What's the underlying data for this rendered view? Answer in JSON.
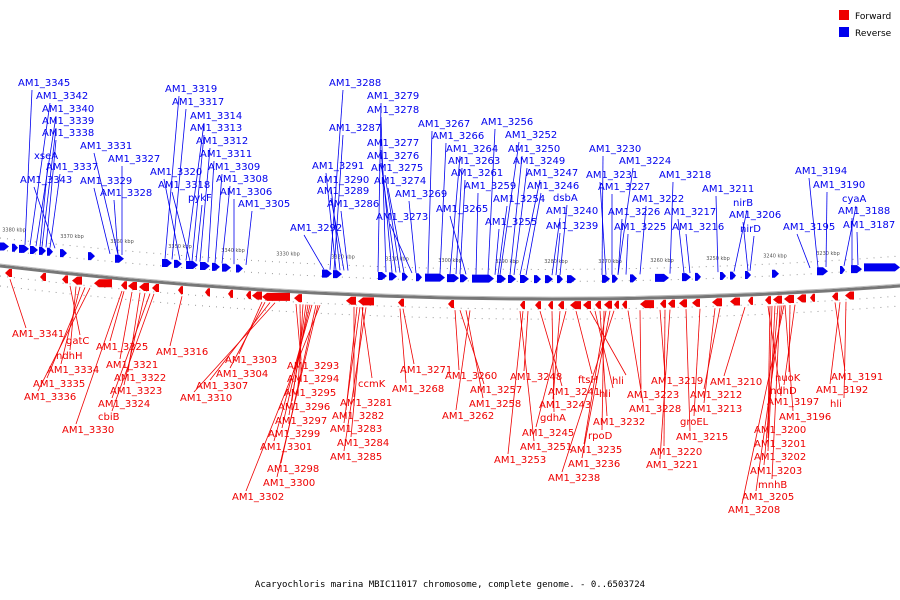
{
  "legend": {
    "forward_label": "Forward",
    "reverse_label": "Reverse",
    "forward_color": "#ee0000",
    "reverse_color": "#0000ee"
  },
  "caption": "Acaryochloris marina MBIC11017 chromosome, complete genome. - 0..6503724",
  "ticks": [
    "3380 kbp",
    "3370 kbp",
    "3360 kbp",
    "3350 kbp",
    "3340 kbp",
    "3330 kbp",
    "3320 kbp",
    "3310 kbp",
    "3300 kbp",
    "3290 kbp",
    "3280 kbp",
    "3270 kbp",
    "3260 kbp",
    "3250 kbp",
    "3240 kbp",
    "3230 kbp"
  ],
  "reverse_labels": [
    "AM1_3345",
    "AM1_3342",
    "AM1_3340",
    "AM1_3339",
    "AM1_3338",
    "xseA",
    "AM1_3337",
    "AM1_3343",
    "AM1_3331",
    "AM1_3327",
    "AM1_3329",
    "AM1_3328",
    "AM1_3319",
    "AM1_3317",
    "AM1_3314",
    "AM1_3313",
    "AM1_3312",
    "AM1_3311",
    "AM1_3320",
    "AM1_3309",
    "AM1_3318",
    "AM1_3308",
    "pykF",
    "AM1_3306",
    "AM1_3305",
    "AM1_3288",
    "AM1_3279",
    "AM1_3278",
    "AM1_3287",
    "AM1_3277",
    "AM1_3276",
    "AM1_3291",
    "AM1_3275",
    "AM1_3290",
    "AM1_3274",
    "AM1_3289",
    "AM1_3286",
    "AM1_3292",
    "AM1_3273",
    "AM1_3267",
    "AM1_3266",
    "AM1_3264",
    "AM1_3263",
    "AM1_3261",
    "AM1_3265",
    "AM1_3269",
    "AM1_3256",
    "AM1_3252",
    "AM1_3250",
    "AM1_3249",
    "AM1_3247",
    "AM1_3259",
    "AM1_3246",
    "AM1_3254",
    "dsbA",
    "AM1_3255",
    "AM1_3240",
    "AM1_3239",
    "AM1_3230",
    "AM1_3224",
    "AM1_3231",
    "AM1_3227",
    "AM1_3222",
    "AM1_3218",
    "AM1_3226",
    "AM1_3217",
    "AM1_3225",
    "AM1_3216",
    "AM1_3211",
    "nirB",
    "AM1_3206",
    "nirD",
    "AM1_3194",
    "AM1_3190",
    "cyaA",
    "AM1_3188",
    "AM1_3195",
    "AM1_3187"
  ],
  "forward_labels": [
    "AM1_3341",
    "gatC",
    "ndhH",
    "AM1_3334",
    "AM1_3335",
    "AM1_3336",
    "AM1_3325",
    "AM1_3321",
    "AM1_3322",
    "AM1_3323",
    "AM1_3324",
    "cbiB",
    "AM1_3330",
    "AM1_3316",
    "AM1_3303",
    "AM1_3304",
    "AM1_3307",
    "AM1_3310",
    "AM1_3293",
    "AM1_3294",
    "AM1_3295",
    "AM1_3296",
    "AM1_3297",
    "AM1_3299",
    "AM1_3301",
    "AM1_3298",
    "AM1_3300",
    "AM1_3302",
    "ccmK",
    "AM1_3281",
    "AM1_3282",
    "AM1_3283",
    "AM1_3284",
    "AM1_3285",
    "AM1_3271",
    "AM1_3268",
    "AM1_3260",
    "AM1_3257",
    "AM1_3258",
    "AM1_3262",
    "AM1_3251",
    "AM1_3253",
    "AM1_3248",
    "AM1_3241",
    "gdhA",
    "AM1_3243",
    "AM1_3245",
    "ftsH",
    "hli",
    "hli",
    "AM1_3232",
    "AM1_3235",
    "AM1_3236",
    "AM1_3238",
    "rpoD",
    "AM1_3228",
    "AM1_3223",
    "AM1_3219",
    "AM1_3220",
    "AM1_3221",
    "AM1_3215",
    "groEL",
    "AM1_3213",
    "AM1_3212",
    "AM1_3210",
    "AM1_3197",
    "AM1_3196",
    "nuoK",
    "ndhD",
    "AM1_3200",
    "AM1_3201",
    "AM1_3202",
    "AM1_3203",
    "mnhB",
    "AM1_3205",
    "AM1_3208",
    "AM1_3191",
    "AM1_3192",
    "hli"
  ]
}
